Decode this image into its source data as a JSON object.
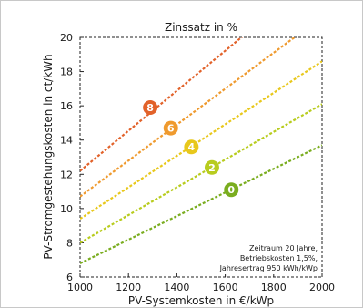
{
  "chart_data": {
    "type": "line",
    "title": "Zinssatz in %",
    "xlabel": "PV-Systemkosten in €/kWp",
    "ylabel": "PV-Stromgestehungskosten in ct/kWh",
    "xlim": [
      1000,
      2000
    ],
    "ylim": [
      6,
      20
    ],
    "x_ticks": [
      "1000",
      "1200",
      "1400",
      "1600",
      "1800",
      "2000"
    ],
    "y_ticks": [
      "6",
      "8",
      "10",
      "12",
      "14",
      "16",
      "18",
      "20"
    ],
    "grid": false,
    "annotation": [
      "Zeitraum 20 Jahre,",
      "Betriebskosten 1,5%,",
      "Jahresertrag 950 kWh/kWp"
    ],
    "series": [
      {
        "label": "0",
        "color": "#7aad1f",
        "x": [
          1000,
          2000
        ],
        "y": [
          6.8,
          13.7
        ],
        "marker": [
          1625,
          11.1
        ]
      },
      {
        "label": "2",
        "color": "#b8cc1e",
        "x": [
          1000,
          2000
        ],
        "y": [
          8.0,
          16.1
        ],
        "marker": [
          1545,
          12.4
        ]
      },
      {
        "label": "4",
        "color": "#e8c81c",
        "x": [
          1000,
          2000
        ],
        "y": [
          9.4,
          18.6
        ],
        "marker": [
          1460,
          13.6
        ]
      },
      {
        "label": "6",
        "color": "#ef9a2e",
        "x": [
          1000,
          2000
        ],
        "y": [
          10.7,
          21.2
        ],
        "marker": [
          1375,
          14.7
        ]
      },
      {
        "label": "8",
        "color": "#e2622a",
        "x": [
          1000,
          2000
        ],
        "y": [
          12.2,
          23.9
        ],
        "marker": [
          1290,
          15.9
        ]
      }
    ]
  }
}
